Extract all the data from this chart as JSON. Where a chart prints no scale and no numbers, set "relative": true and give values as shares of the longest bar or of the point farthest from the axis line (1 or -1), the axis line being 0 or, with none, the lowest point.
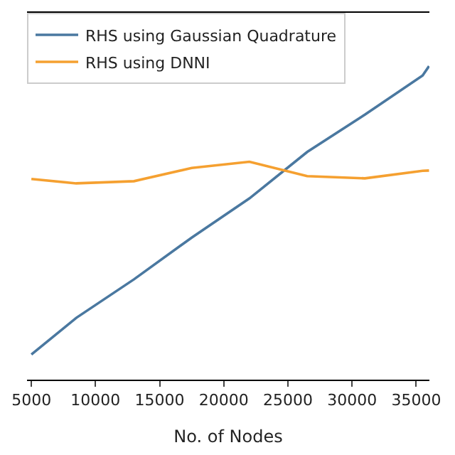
{
  "chart_data": {
    "type": "line",
    "xlabel": "No. of Nodes",
    "relative": true,
    "x": [
      5000,
      8500,
      13000,
      17500,
      22000,
      26500,
      31000,
      35500,
      36000
    ],
    "xlim": [
      4660,
      36030
    ],
    "xticks": [
      5000,
      10000,
      15000,
      20000,
      25000,
      30000,
      35000
    ],
    "series": [
      {
        "name": "RHS using Gaussian Quadrature",
        "color": "#4a78a0",
        "values": [
          0.08,
          0.197,
          0.32,
          0.453,
          0.578,
          0.726,
          0.845,
          0.97,
          1
        ]
      },
      {
        "name": "RHS using DNNI",
        "color": "#f5a030",
        "values": [
          0.64,
          0.626,
          0.633,
          0.675,
          0.695,
          0.649,
          0.642,
          0.666,
          0.667
        ]
      }
    ],
    "legend": "top left",
    "marker": "none",
    "line_style": "solid"
  }
}
